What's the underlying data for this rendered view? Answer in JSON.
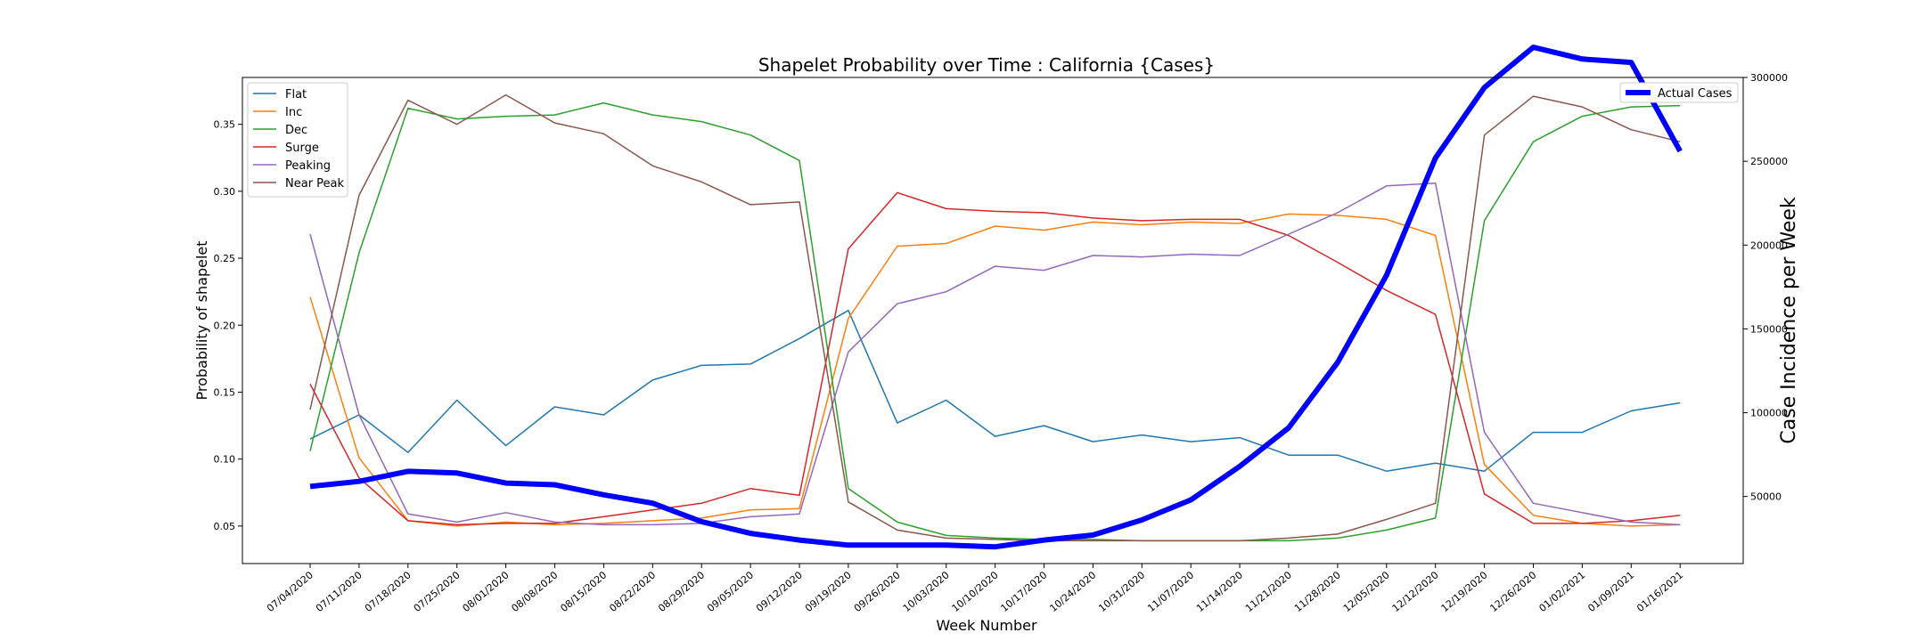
{
  "chart_data": {
    "type": "line",
    "title": "Shapelet Probability over Time : California {Cases}",
    "xlabel": "Week Number",
    "ylabel": "Probability of shapelet",
    "y2label": "Case Incidence per Week",
    "ylim": [
      0.022,
      0.385
    ],
    "y2lim": [
      10000,
      300000
    ],
    "yticks": [
      "0.05",
      "0.10",
      "0.15",
      "0.20",
      "0.25",
      "0.30",
      "0.35"
    ],
    "y2ticks": [
      "50000",
      "100000",
      "150000",
      "200000",
      "250000",
      "300000"
    ],
    "categories": [
      "07/04/2020",
      "07/11/2020",
      "07/18/2020",
      "07/25/2020",
      "08/01/2020",
      "08/08/2020",
      "08/15/2020",
      "08/22/2020",
      "08/29/2020",
      "09/05/2020",
      "09/12/2020",
      "09/19/2020",
      "09/26/2020",
      "10/03/2020",
      "10/10/2020",
      "10/17/2020",
      "10/24/2020",
      "10/31/2020",
      "11/07/2020",
      "11/14/2020",
      "11/21/2020",
      "11/28/2020",
      "12/05/2020",
      "12/12/2020",
      "12/19/2020",
      "12/26/2020",
      "01/02/2021",
      "01/09/2021",
      "01/16/2021"
    ],
    "series": [
      {
        "name": "Flat",
        "color": "#1f77b4",
        "values": [
          0.115,
          0.133,
          0.105,
          0.144,
          0.11,
          0.139,
          0.133,
          0.159,
          0.17,
          0.171,
          0.19,
          0.211,
          0.127,
          0.144,
          0.117,
          0.125,
          0.113,
          0.118,
          0.113,
          0.116,
          0.103,
          0.103,
          0.091,
          0.097,
          0.091,
          0.12,
          0.12,
          0.136,
          0.142
        ]
      },
      {
        "name": "Inc",
        "color": "#ff7f0e",
        "values": [
          0.221,
          0.101,
          0.054,
          0.05,
          0.053,
          0.051,
          0.052,
          0.054,
          0.056,
          0.062,
          0.063,
          0.205,
          0.259,
          0.261,
          0.274,
          0.271,
          0.277,
          0.275,
          0.277,
          0.276,
          0.283,
          0.282,
          0.279,
          0.267,
          0.096,
          0.058,
          0.052,
          0.05,
          0.051
        ]
      },
      {
        "name": "Dec",
        "color": "#2ca02c",
        "values": [
          0.106,
          0.254,
          0.362,
          0.354,
          0.356,
          0.357,
          0.366,
          0.357,
          0.352,
          0.342,
          0.323,
          0.078,
          0.053,
          0.043,
          0.041,
          0.04,
          0.04,
          0.039,
          0.039,
          0.039,
          0.039,
          0.041,
          0.047,
          0.056,
          0.278,
          0.337,
          0.356,
          0.363,
          0.364
        ]
      },
      {
        "name": "Surge",
        "color": "#d62728",
        "values": [
          0.156,
          0.086,
          0.054,
          0.051,
          0.052,
          0.052,
          0.057,
          0.062,
          0.067,
          0.078,
          0.073,
          0.257,
          0.299,
          0.287,
          0.285,
          0.284,
          0.28,
          0.278,
          0.279,
          0.279,
          0.267,
          0.247,
          0.226,
          0.208,
          0.074,
          0.052,
          0.052,
          0.054,
          0.058
        ]
      },
      {
        "name": "Peaking",
        "color": "#9467bd",
        "values": [
          0.268,
          0.133,
          0.059,
          0.053,
          0.06,
          0.053,
          0.051,
          0.051,
          0.052,
          0.057,
          0.059,
          0.18,
          0.216,
          0.225,
          0.244,
          0.241,
          0.252,
          0.251,
          0.253,
          0.252,
          0.268,
          0.284,
          0.304,
          0.306,
          0.12,
          0.067,
          0.06,
          0.053,
          0.051
        ]
      },
      {
        "name": "Near Peak",
        "color": "#8c564b",
        "values": [
          0.137,
          0.297,
          0.368,
          0.35,
          0.372,
          0.351,
          0.343,
          0.319,
          0.307,
          0.29,
          0.292,
          0.068,
          0.047,
          0.041,
          0.04,
          0.039,
          0.039,
          0.039,
          0.039,
          0.039,
          0.041,
          0.044,
          0.055,
          0.067,
          0.342,
          0.371,
          0.363,
          0.346,
          0.337
        ]
      }
    ],
    "secondary_series": {
      "name": "Actual Cases",
      "color": "#0000ff",
      "axis": "right",
      "values": [
        56000,
        59000,
        65000,
        64000,
        58000,
        57000,
        51000,
        46000,
        35000,
        28000,
        24000,
        21000,
        21000,
        21000,
        20000,
        24000,
        27000,
        36000,
        48000,
        68000,
        91000,
        130000,
        182000,
        252000,
        294000,
        318000,
        311000,
        309000,
        256000
      ]
    },
    "legend_left": "upper-left",
    "legend_right": "upper-right",
    "grid": false
  }
}
